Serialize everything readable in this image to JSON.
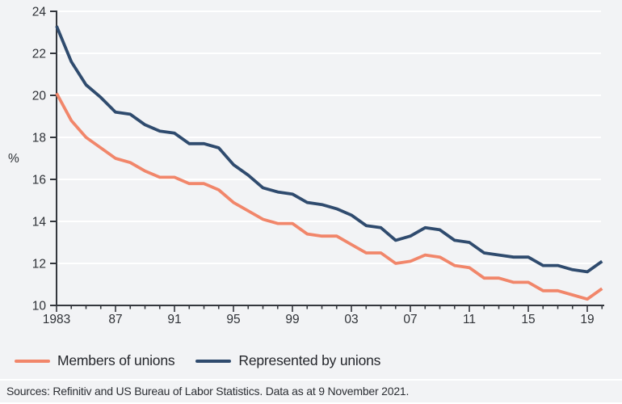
{
  "chart_data": {
    "type": "line",
    "title": "",
    "xlabel": "",
    "ylabel": "%",
    "ylim": [
      10,
      24
    ],
    "y_ticks": [
      10,
      12,
      14,
      16,
      18,
      20,
      22,
      24
    ],
    "grid": "horizontal-white",
    "legend_position": "bottom-left",
    "x": [
      1983,
      1984,
      1985,
      1986,
      1987,
      1988,
      1989,
      1990,
      1991,
      1992,
      1993,
      1994,
      1995,
      1996,
      1997,
      1998,
      1999,
      2000,
      2001,
      2002,
      2003,
      2004,
      2005,
      2006,
      2007,
      2008,
      2009,
      2010,
      2011,
      2012,
      2013,
      2014,
      2015,
      2016,
      2017,
      2018,
      2019,
      2020
    ],
    "x_tick_years": [
      1983,
      1987,
      1991,
      1995,
      1999,
      2003,
      2007,
      2011,
      2015,
      2019
    ],
    "x_tick_labels": [
      "1983",
      "87",
      "91",
      "95",
      "99",
      "03",
      "07",
      "11",
      "15",
      "19"
    ],
    "series": [
      {
        "name": "Members of unions",
        "color": "#F1866A",
        "values": [
          20.1,
          18.8,
          18.0,
          17.5,
          17.0,
          16.8,
          16.4,
          16.1,
          16.1,
          15.8,
          15.8,
          15.5,
          14.9,
          14.5,
          14.1,
          13.9,
          13.9,
          13.4,
          13.3,
          13.3,
          12.9,
          12.5,
          12.5,
          12.0,
          12.1,
          12.4,
          12.3,
          11.9,
          11.8,
          11.3,
          11.3,
          11.1,
          11.1,
          10.7,
          10.7,
          10.5,
          10.3,
          10.8
        ]
      },
      {
        "name": "Represented by unions",
        "color": "#2F4B6E",
        "values": [
          23.3,
          21.6,
          20.5,
          19.9,
          19.2,
          19.1,
          18.6,
          18.3,
          18.2,
          17.7,
          17.7,
          17.5,
          16.7,
          16.2,
          15.6,
          15.4,
          15.3,
          14.9,
          14.8,
          14.6,
          14.3,
          13.8,
          13.7,
          13.1,
          13.3,
          13.7,
          13.6,
          13.1,
          13.0,
          12.5,
          12.4,
          12.3,
          12.3,
          11.9,
          11.9,
          11.7,
          11.6,
          12.1
        ]
      }
    ]
  },
  "footer": {
    "source_text": "Sources: Refinitiv and US Bureau of Labor Statistics. Data as at 9 November 2021."
  },
  "colors": {
    "background": "#F2F3F5",
    "gridline": "#FFFFFF",
    "axis": "#34373D",
    "tick_text": "#2E3136",
    "legend_text": "#24262B",
    "source_text": "#2B2E33"
  }
}
